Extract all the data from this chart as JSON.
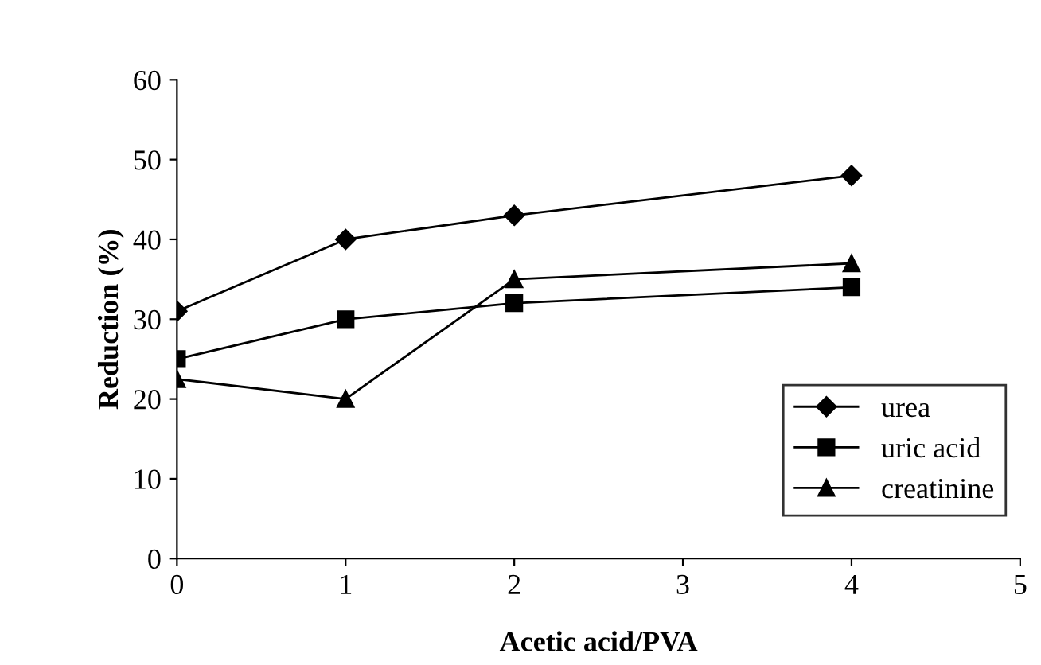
{
  "chart_data": {
    "type": "line",
    "xlabel": "Acetic acid/PVA",
    "ylabel": "Reduction (%)",
    "x": [
      0,
      1,
      2,
      4
    ],
    "series": [
      {
        "name": "urea",
        "color": "#000000",
        "marker": "diamond",
        "values": [
          31,
          40,
          43,
          48
        ]
      },
      {
        "name": "uric acid",
        "color": "#000000",
        "marker": "square",
        "values": [
          25,
          30,
          32,
          34
        ]
      },
      {
        "name": "creatinine",
        "color": "#000000",
        "marker": "triangle",
        "values": [
          22.5,
          20,
          35,
          37
        ]
      }
    ],
    "xlim": [
      0,
      5
    ],
    "xticks": [
      0,
      1,
      2,
      3,
      4,
      5
    ],
    "ylim": [
      0,
      60
    ],
    "yticks": [
      0,
      10,
      20,
      30,
      40,
      50,
      60
    ],
    "grid": false,
    "legend": "bottom right",
    "line_style": "solid"
  }
}
